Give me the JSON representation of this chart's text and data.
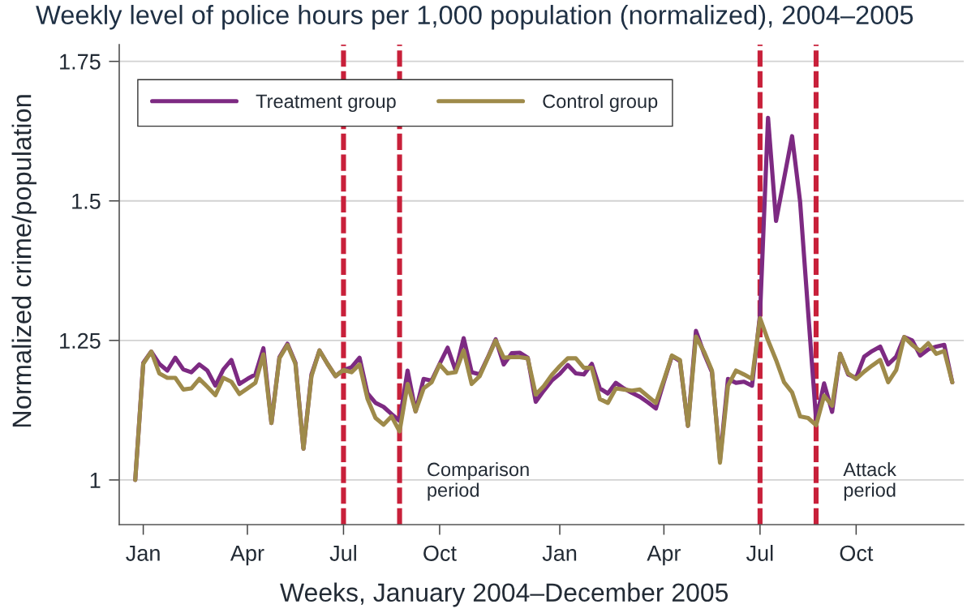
{
  "chart_data": {
    "type": "line",
    "title": "Weekly level of police hours per 1,000 population (normalized), 2004–2005",
    "xlabel": "Weeks, January 2004–December 2005",
    "ylabel": "Normalized crime/population",
    "x": [
      "2004-01-10",
      "2004-01-17",
      "2004-01-24",
      "2004-01-31",
      "2004-02-07",
      "2004-02-14",
      "2004-02-21",
      "2004-02-28",
      "2004-03-06",
      "2004-03-13",
      "2004-03-20",
      "2004-03-27",
      "2004-04-03",
      "2004-04-10",
      "2004-04-17",
      "2004-04-24",
      "2004-05-01",
      "2004-05-08",
      "2004-05-15",
      "2004-05-22",
      "2004-05-29",
      "2004-06-05",
      "2004-06-12",
      "2004-06-19",
      "2004-06-26",
      "2004-07-03",
      "2004-07-10",
      "2004-07-17",
      "2004-07-24",
      "2004-07-31",
      "2004-08-07",
      "2004-08-14",
      "2004-08-21",
      "2004-08-28",
      "2004-09-04",
      "2004-09-11",
      "2004-09-18",
      "2004-09-25",
      "2004-10-02",
      "2004-10-09",
      "2004-10-16",
      "2004-10-23",
      "2004-10-30",
      "2004-11-06",
      "2004-11-13",
      "2004-11-20",
      "2004-11-27",
      "2004-12-04",
      "2004-12-11",
      "2004-12-18",
      "2004-12-25",
      "2005-01-01",
      "2005-01-08",
      "2005-01-15",
      "2005-01-22",
      "2005-01-29",
      "2005-02-05",
      "2005-02-12",
      "2005-02-19",
      "2005-02-26",
      "2005-03-05",
      "2005-03-12",
      "2005-03-19",
      "2005-03-26",
      "2005-04-02",
      "2005-04-09",
      "2005-04-16",
      "2005-04-23",
      "2005-04-30",
      "2005-05-07",
      "2005-05-14",
      "2005-05-21",
      "2005-05-28",
      "2005-06-04",
      "2005-06-11",
      "2005-06-18",
      "2005-06-25",
      "2005-07-02",
      "2005-07-09",
      "2005-07-16",
      "2005-07-23",
      "2005-07-30",
      "2005-08-06",
      "2005-08-13",
      "2005-08-20",
      "2005-08-27",
      "2005-09-03",
      "2005-09-10",
      "2005-09-17",
      "2005-09-24",
      "2005-10-01",
      "2005-10-08",
      "2005-10-15",
      "2005-10-22",
      "2005-10-29",
      "2005-11-05",
      "2005-11-12",
      "2005-11-19",
      "2005-11-26",
      "2005-12-03",
      "2005-12-10",
      "2005-12-17",
      "2005-12-24"
    ],
    "series": [
      {
        "name": "Treatment group",
        "color": "#7d2a82",
        "values": [
          1.0,
          1.21,
          1.23,
          1.208,
          1.196,
          1.219,
          1.198,
          1.193,
          1.207,
          1.196,
          1.169,
          1.198,
          1.215,
          1.172,
          1.181,
          1.189,
          1.236,
          1.102,
          1.22,
          1.244,
          1.21,
          1.056,
          1.189,
          1.232,
          1.208,
          1.186,
          1.197,
          1.202,
          1.219,
          1.155,
          1.138,
          1.131,
          1.118,
          1.106,
          1.196,
          1.123,
          1.181,
          1.178,
          1.208,
          1.237,
          1.196,
          1.254,
          1.193,
          1.189,
          1.219,
          1.252,
          1.207,
          1.227,
          1.228,
          1.219,
          1.14,
          1.16,
          1.178,
          1.19,
          1.206,
          1.191,
          1.189,
          1.208,
          1.164,
          1.155,
          1.174,
          1.164,
          1.156,
          1.149,
          1.139,
          1.128,
          1.176,
          1.222,
          1.213,
          1.097,
          1.267,
          1.227,
          1.193,
          1.036,
          1.181,
          1.174,
          1.176,
          1.169,
          1.296,
          1.649,
          1.464,
          1.54,
          1.616,
          1.499,
          1.302,
          1.108,
          1.173,
          1.122,
          1.226,
          1.189,
          1.183,
          1.221,
          1.231,
          1.239,
          1.207,
          1.221,
          1.256,
          1.25,
          1.223,
          1.234,
          1.239,
          1.242,
          1.175
        ]
      },
      {
        "name": "Control group",
        "color": "#9e8a4a",
        "values": [
          1.0,
          1.208,
          1.23,
          1.191,
          1.183,
          1.183,
          1.162,
          1.164,
          1.181,
          1.167,
          1.152,
          1.183,
          1.176,
          1.154,
          1.164,
          1.174,
          1.225,
          1.102,
          1.218,
          1.242,
          1.208,
          1.056,
          1.186,
          1.232,
          1.208,
          1.186,
          1.197,
          1.193,
          1.207,
          1.145,
          1.111,
          1.099,
          1.114,
          1.087,
          1.172,
          1.123,
          1.164,
          1.175,
          1.207,
          1.191,
          1.193,
          1.232,
          1.172,
          1.186,
          1.218,
          1.25,
          1.219,
          1.22,
          1.22,
          1.218,
          1.153,
          1.168,
          1.188,
          1.204,
          1.218,
          1.218,
          1.201,
          1.201,
          1.145,
          1.138,
          1.164,
          1.162,
          1.16,
          1.162,
          1.15,
          1.138,
          1.179,
          1.223,
          1.215,
          1.097,
          1.257,
          1.23,
          1.196,
          1.031,
          1.169,
          1.196,
          1.189,
          1.181,
          1.29,
          1.25,
          1.215,
          1.175,
          1.157,
          1.114,
          1.111,
          1.098,
          1.151,
          1.133,
          1.226,
          1.191,
          1.181,
          1.194,
          1.205,
          1.215,
          1.175,
          1.197,
          1.256,
          1.242,
          1.231,
          1.245,
          1.226,
          1.231,
          1.175
        ]
      }
    ],
    "xlim": [
      "2003-12-27",
      "2006-01-03"
    ],
    "xticks": [
      {
        "value": "2004-01-17",
        "label": "Jan"
      },
      {
        "value": "2004-04-17",
        "label": "Apr"
      },
      {
        "value": "2004-07-10",
        "label": "Jul"
      },
      {
        "value": "2004-10-02",
        "label": "Oct"
      },
      {
        "value": "2005-01-15",
        "label": "Jan"
      },
      {
        "value": "2005-04-16",
        "label": "Apr"
      },
      {
        "value": "2005-07-09",
        "label": "Jul"
      },
      {
        "value": "2005-10-01",
        "label": "Oct"
      }
    ],
    "ylim": [
      0.92,
      1.78
    ],
    "yticks": [
      1,
      1.25,
      1.5,
      1.75
    ],
    "grid": "y",
    "legend": "top left",
    "ref_lines": [
      {
        "axis": "x",
        "value": "2004-07-10",
        "color": "#c8203a",
        "line_style": "dashed"
      },
      {
        "axis": "x",
        "value": "2004-08-28",
        "label": "Comparison\nperiod",
        "color": "#c8203a",
        "line_style": "dashed"
      },
      {
        "axis": "x",
        "value": "2005-07-09",
        "color": "#c8203a",
        "line_style": "dashed"
      },
      {
        "axis": "x",
        "value": "2005-08-27",
        "label": "Attack\nperiod",
        "color": "#c8203a",
        "line_style": "dashed"
      }
    ]
  }
}
